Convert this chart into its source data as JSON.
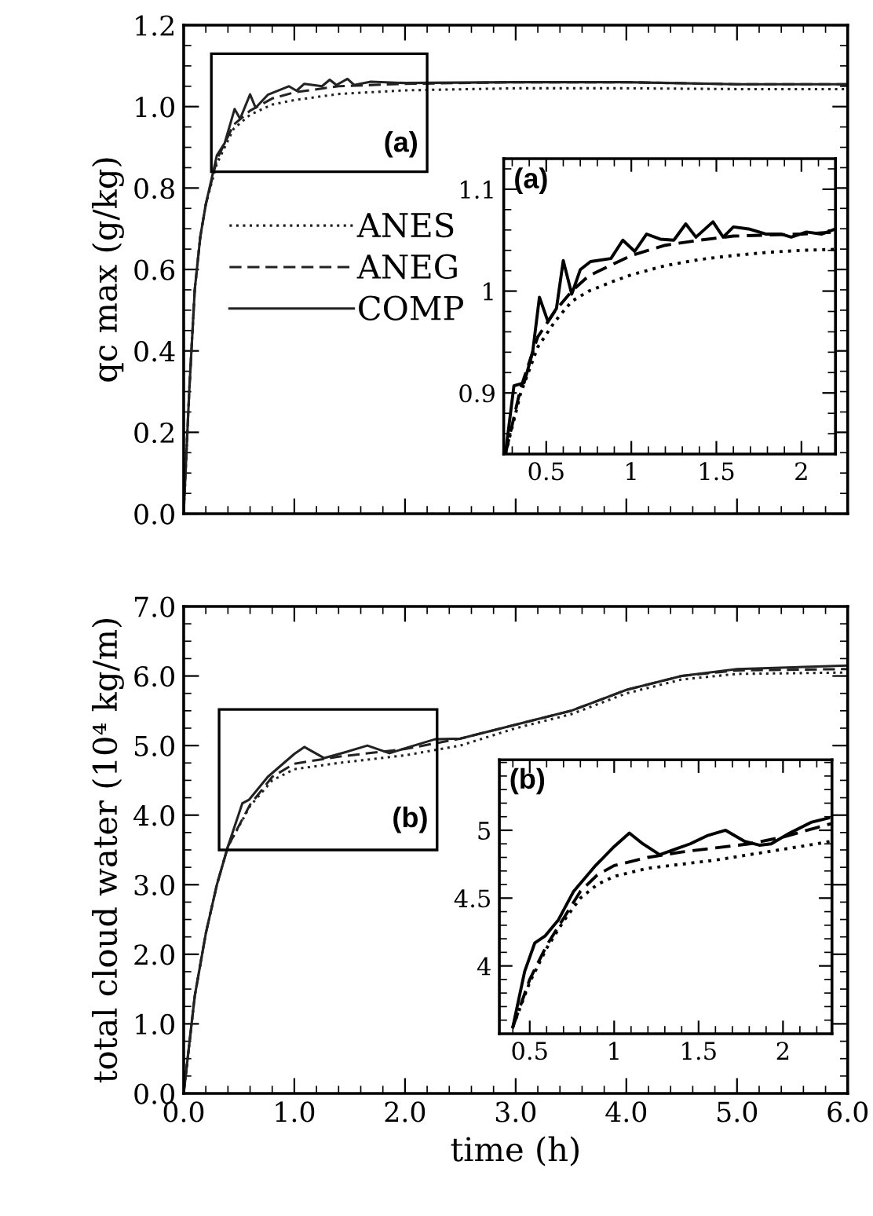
{
  "chart_data": [
    {
      "type": "line",
      "ylabel": "qc max (g/kg)",
      "annotations": [
        "(a)"
      ],
      "xlim": [
        0,
        6
      ],
      "ylim": [
        0,
        1.2
      ],
      "xticks": [
        {
          "value": 0,
          "label": null
        },
        {
          "value": 1,
          "label": null
        },
        {
          "value": 2,
          "label": null
        },
        {
          "value": 3,
          "label": null
        },
        {
          "value": 4,
          "label": null
        },
        {
          "value": 5,
          "label": null
        },
        {
          "value": 6,
          "label": null
        }
      ],
      "yticks": [
        {
          "value": 0,
          "label": "0.0"
        },
        0.2,
        0.4,
        0.6,
        0.8,
        {
          "value": 1,
          "label": "1.0"
        },
        1.2
      ],
      "tick_labels": "y",
      "legend": "left",
      "grid": false,
      "series": [
        {
          "name": "ANES",
          "color": "#222222",
          "line_style": "dotted",
          "x": [
            0,
            0.05,
            0.1,
            0.15,
            0.2,
            0.3,
            0.45,
            0.6,
            0.8,
            1.0,
            1.4,
            2.0,
            3.0,
            4.0,
            5.0,
            6.0
          ],
          "values": [
            0,
            0.3,
            0.55,
            0.68,
            0.76,
            0.86,
            0.945,
            0.98,
            1.005,
            1.016,
            1.031,
            1.04,
            1.045,
            1.045,
            1.043,
            1.043
          ]
        },
        {
          "name": "ANEG",
          "color": "#222222",
          "line_style": "dashed",
          "x": [
            0,
            0.05,
            0.1,
            0.15,
            0.2,
            0.3,
            0.45,
            0.6,
            0.8,
            1.0,
            1.4,
            2.0,
            3.0,
            4.0,
            5.0,
            6.0
          ],
          "values": [
            0,
            0.3,
            0.55,
            0.68,
            0.76,
            0.87,
            0.955,
            0.99,
            1.02,
            1.035,
            1.05,
            1.056,
            1.06,
            1.06,
            1.055,
            1.055
          ]
        },
        {
          "name": "COMP",
          "color": "#222222",
          "line_style": "solid",
          "x": [
            0,
            0.05,
            0.1,
            0.15,
            0.2,
            0.3,
            0.37,
            0.46,
            0.51,
            0.6,
            0.65,
            0.76,
            0.95,
            1.02,
            1.09,
            1.25,
            1.32,
            1.38,
            1.48,
            1.54,
            1.69,
            2.0,
            3.0,
            4.0,
            5.0,
            6.0
          ],
          "values": [
            0,
            0.3,
            0.55,
            0.68,
            0.76,
            0.88,
            0.91,
            0.994,
            0.97,
            1.03,
            0.997,
            1.029,
            1.05,
            1.039,
            1.056,
            1.05,
            1.066,
            1.053,
            1.068,
            1.053,
            1.061,
            1.058,
            1.06,
            1.06,
            1.055,
            1.055
          ]
        }
      ]
    },
    {
      "type": "line",
      "xlabel": "time (h)",
      "ylabel": "total cloud water (10⁴ kg/m)",
      "annotations": [
        "(b)"
      ],
      "xlim": [
        0,
        6
      ],
      "ylim": [
        0,
        7
      ],
      "xticks": [
        {
          "value": 0,
          "label": "0.0"
        },
        {
          "value": 1,
          "label": "1.0"
        },
        {
          "value": 2,
          "label": "2.0"
        },
        {
          "value": 3,
          "label": "3.0"
        },
        {
          "value": 4,
          "label": "4.0"
        },
        {
          "value": 5,
          "label": "5.0"
        },
        {
          "value": 6,
          "label": "6.0"
        }
      ],
      "yticks": [
        {
          "value": 0,
          "label": "0.0"
        },
        {
          "value": 1,
          "label": "1.0"
        },
        {
          "value": 2,
          "label": "2.0"
        },
        {
          "value": 3,
          "label": "3.0"
        },
        {
          "value": 4,
          "label": "4.0"
        },
        {
          "value": 5,
          "label": "5.0"
        },
        {
          "value": 6,
          "label": "6.0"
        },
        {
          "value": 7,
          "label": "7.0"
        }
      ],
      "grid": false,
      "series": [
        {
          "color": "#222222",
          "line_style": "dotted",
          "x": [
            0,
            0.1,
            0.2,
            0.3,
            0.4,
            0.6,
            0.8,
            1.0,
            1.4,
            2.0,
            2.5,
            3.0,
            3.5,
            4.0,
            4.5,
            5.0,
            6.0
          ],
          "values": [
            0,
            1.4,
            2.3,
            3.0,
            3.55,
            4.13,
            4.5,
            4.66,
            4.75,
            4.86,
            5.0,
            5.25,
            5.45,
            5.75,
            5.95,
            6.03,
            6.05
          ]
        },
        {
          "color": "#222222",
          "line_style": "dashed",
          "x": [
            0,
            0.1,
            0.2,
            0.3,
            0.4,
            0.6,
            0.8,
            1.0,
            1.4,
            2.0,
            2.5,
            3.0,
            3.5,
            4.0,
            4.5,
            5.0,
            6.0
          ],
          "values": [
            0,
            1.4,
            2.3,
            3.0,
            3.55,
            4.15,
            4.55,
            4.74,
            4.84,
            4.95,
            5.1,
            5.3,
            5.5,
            5.8,
            6.0,
            6.08,
            6.1
          ]
        },
        {
          "color": "#222222",
          "line_style": "solid",
          "x": [
            0,
            0.1,
            0.2,
            0.3,
            0.4,
            0.53,
            0.59,
            0.76,
            1.0,
            1.09,
            1.27,
            1.45,
            1.66,
            1.86,
            2.04,
            2.27,
            2.5,
            3.0,
            3.5,
            4.0,
            4.5,
            5.0,
            6.0
          ],
          "values": [
            0,
            1.4,
            2.3,
            3.0,
            3.55,
            4.17,
            4.22,
            4.55,
            4.88,
            4.98,
            4.82,
            4.9,
            5.0,
            4.89,
            4.98,
            5.09,
            5.1,
            5.3,
            5.5,
            5.8,
            6.0,
            6.1,
            6.15
          ]
        }
      ]
    },
    {
      "type": "line",
      "annotations": [
        "(a)"
      ],
      "xlim": [
        0.25,
        2.2
      ],
      "ylim": [
        0.84,
        1.13
      ],
      "xticks": [
        0.5,
        1,
        1.5,
        2
      ],
      "yticks": [
        0.9,
        1,
        1.1
      ],
      "grid": false,
      "series": [
        {
          "color": "#000000",
          "line_style": "dotted",
          "x": [
            0.26,
            0.35,
            0.45,
            0.55,
            0.65,
            0.75,
            0.9,
            1.0,
            1.2,
            1.4,
            1.6,
            1.8,
            2.0,
            2.2
          ],
          "values": [
            0.84,
            0.9,
            0.945,
            0.97,
            0.99,
            1.0,
            1.01,
            1.016,
            1.025,
            1.031,
            1.035,
            1.038,
            1.04,
            1.041
          ]
        },
        {
          "color": "#000000",
          "line_style": "dashed",
          "x": [
            0.26,
            0.35,
            0.45,
            0.55,
            0.65,
            0.75,
            0.9,
            1.0,
            1.2,
            1.4,
            1.6,
            1.8,
            2.0,
            2.2
          ],
          "values": [
            0.84,
            0.905,
            0.955,
            0.98,
            1.0,
            1.015,
            1.027,
            1.035,
            1.045,
            1.05,
            1.054,
            1.055,
            1.056,
            1.058
          ]
        },
        {
          "color": "#000000",
          "line_style": "solid",
          "x": [
            0.26,
            0.31,
            0.37,
            0.42,
            0.46,
            0.51,
            0.56,
            0.6,
            0.65,
            0.7,
            0.76,
            0.88,
            0.95,
            1.02,
            1.09,
            1.17,
            1.25,
            1.32,
            1.38,
            1.48,
            1.54,
            1.6,
            1.69,
            1.79,
            1.88,
            1.94,
            2.03,
            2.12,
            2.2
          ],
          "values": [
            0.84,
            0.907,
            0.91,
            0.94,
            0.994,
            0.97,
            0.983,
            1.03,
            0.997,
            1.021,
            1.029,
            1.032,
            1.05,
            1.039,
            1.056,
            1.051,
            1.05,
            1.066,
            1.053,
            1.068,
            1.053,
            1.063,
            1.061,
            1.056,
            1.056,
            1.053,
            1.058,
            1.056,
            1.061
          ]
        }
      ]
    },
    {
      "type": "line",
      "annotations": [
        "(b)"
      ],
      "xlim": [
        0.32,
        2.29
      ],
      "ylim": [
        3.5,
        5.52
      ],
      "xticks": [
        0.5,
        1,
        1.5,
        2
      ],
      "yticks": [
        4,
        4.5,
        5
      ],
      "grid": false,
      "series": [
        {
          "color": "#000000",
          "line_style": "dotted",
          "x": [
            0.4,
            0.5,
            0.6,
            0.7,
            0.8,
            0.9,
            1.0,
            1.2,
            1.4,
            1.6,
            1.8,
            2.0,
            2.2,
            2.29
          ],
          "values": [
            3.55,
            3.88,
            4.13,
            4.33,
            4.5,
            4.6,
            4.66,
            4.72,
            4.75,
            4.78,
            4.82,
            4.86,
            4.9,
            4.92
          ]
        },
        {
          "color": "#000000",
          "line_style": "dashed",
          "x": [
            0.4,
            0.5,
            0.6,
            0.7,
            0.8,
            0.9,
            1.0,
            1.2,
            1.4,
            1.6,
            1.8,
            2.0,
            2.2,
            2.29
          ],
          "values": [
            3.55,
            3.9,
            4.15,
            4.35,
            4.55,
            4.67,
            4.74,
            4.8,
            4.84,
            4.87,
            4.9,
            4.95,
            5.02,
            5.05
          ]
        },
        {
          "color": "#000000",
          "line_style": "solid",
          "x": [
            0.4,
            0.47,
            0.53,
            0.59,
            0.67,
            0.76,
            0.89,
            1.0,
            1.09,
            1.17,
            1.27,
            1.36,
            1.45,
            1.55,
            1.66,
            1.77,
            1.86,
            1.93,
            2.04,
            2.17,
            2.27
          ],
          "values": [
            3.55,
            3.96,
            4.17,
            4.22,
            4.34,
            4.55,
            4.74,
            4.88,
            4.98,
            4.9,
            4.82,
            4.86,
            4.9,
            4.96,
            5.0,
            4.92,
            4.89,
            4.9,
            4.98,
            5.06,
            5.09
          ]
        }
      ]
    }
  ]
}
